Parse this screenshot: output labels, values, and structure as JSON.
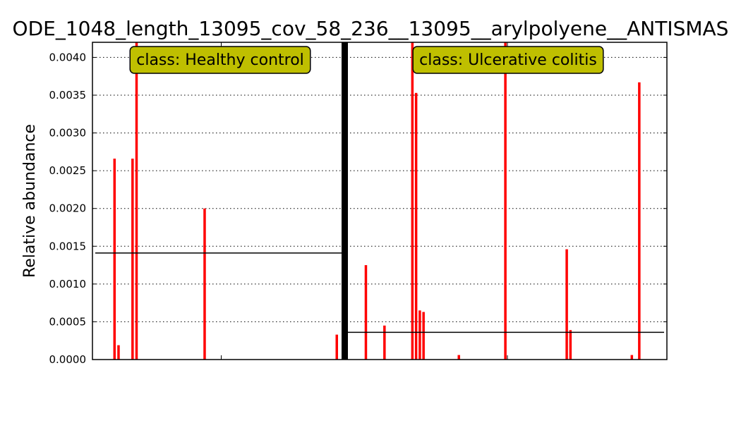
{
  "chart_data": {
    "type": "bar",
    "title": "ODE_1048_length_13095_cov_58_236__13095__arylpolyene__ANTISMAS",
    "xlabel": "",
    "ylabel": "Relative abundance",
    "ylim": [
      0,
      0.0042
    ],
    "yticks": [
      "0.0000",
      "0.0005",
      "0.0010",
      "0.0015",
      "0.0020",
      "0.0025",
      "0.0030",
      "0.0035",
      "0.0040"
    ],
    "grid": "horizontal dotted",
    "bar_color": "#ff0000",
    "mean_line_color": "#000000",
    "separator_color": "#000000",
    "class_box_color": "#bfbf00",
    "classes": [
      {
        "label": "class: Healthy control",
        "mean": 0.00141,
        "values": [
          0,
          0,
          0,
          0,
          0,
          0,
          0,
          0,
          0,
          0.00266,
          0,
          0.00019,
          0,
          0,
          0,
          0,
          0,
          0,
          0.00266,
          0,
          0.0045,
          0,
          0,
          0,
          0,
          0,
          0,
          0,
          0,
          0,
          0,
          0,
          0,
          0,
          0,
          0,
          0,
          0,
          0,
          0,
          0,
          0,
          0,
          0,
          0,
          0,
          0,
          0,
          0,
          0,
          0,
          0,
          0,
          0,
          0.002,
          0,
          0,
          0,
          0,
          0,
          0,
          0,
          0,
          0,
          0,
          0,
          0,
          0,
          0,
          0,
          0,
          0,
          0,
          0,
          0,
          0,
          0,
          0,
          0,
          0,
          0,
          0,
          0,
          0,
          0,
          0,
          0,
          0,
          0,
          0,
          0,
          0,
          0,
          0,
          0,
          0,
          0,
          0,
          0,
          0,
          0,
          0,
          0,
          0,
          0,
          0,
          0,
          0,
          0,
          0,
          0,
          0,
          0,
          0,
          0,
          0,
          0,
          0,
          0,
          0,
          0.00033,
          0,
          0
        ]
      },
      {
        "label": "class: Ulcerative colitis",
        "mean": 0.00036,
        "values": [
          0,
          0,
          0,
          0,
          0,
          0,
          0,
          0,
          0,
          0.00125,
          0,
          0,
          0,
          0,
          0,
          0,
          0,
          0,
          0,
          0.00045,
          0,
          0,
          0,
          0,
          0,
          0,
          0,
          0,
          0,
          0,
          0,
          0,
          0,
          0,
          0.0045,
          0,
          0.00353,
          0,
          0.00065,
          0,
          0.00063,
          0,
          0,
          0,
          0,
          0,
          0,
          0,
          0,
          0,
          0,
          0,
          0,
          0,
          0,
          0,
          0,
          0,
          0,
          6e-05,
          0,
          0,
          0,
          0,
          0,
          0,
          0,
          0,
          0,
          0,
          0,
          0,
          0,
          0,
          0,
          0,
          0,
          0,
          0,
          0,
          0,
          0,
          0,
          0,
          0.0045,
          0,
          0,
          0,
          0,
          0,
          0,
          0,
          0,
          0,
          0,
          0,
          0,
          0,
          0,
          0,
          0,
          0,
          0,
          0,
          0,
          0,
          0,
          0,
          0,
          0,
          0,
          0,
          0,
          0,
          0,
          0,
          0,
          0.00146,
          0,
          0.00039,
          0,
          0,
          0,
          0,
          0,
          0,
          0,
          0,
          0,
          0,
          0,
          0,
          0,
          0,
          0,
          0,
          0,
          0,
          0,
          0,
          0,
          0,
          0,
          0,
          0,
          0,
          0,
          0,
          0,
          0,
          0,
          0,
          6e-05,
          0,
          0,
          0,
          0.00367,
          0,
          0,
          0,
          0,
          0,
          0,
          0,
          0,
          0,
          0,
          0,
          0,
          0
        ]
      }
    ]
  }
}
